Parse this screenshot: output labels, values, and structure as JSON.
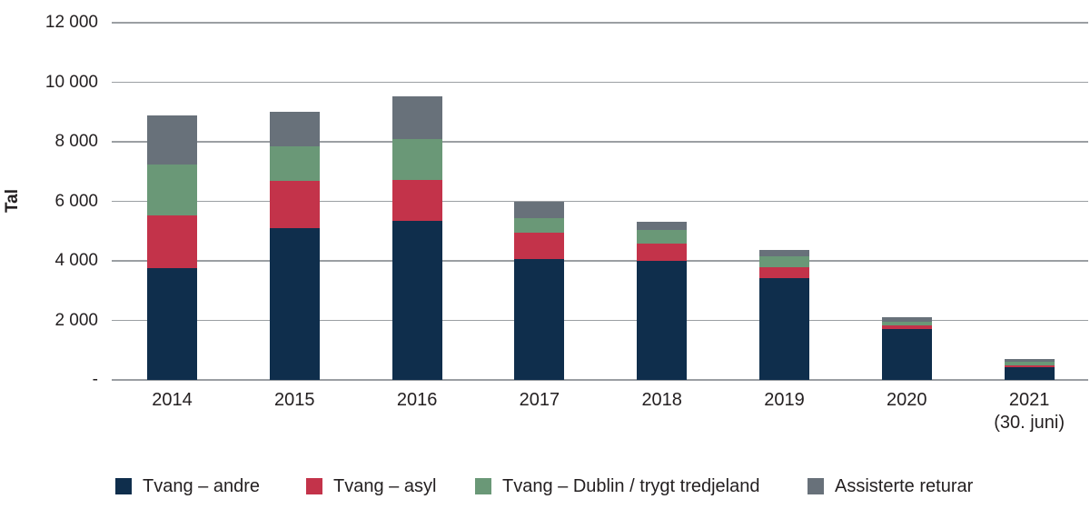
{
  "figure": {
    "ylabel": "Tal",
    "background": "#ffffff",
    "text_color": "#231f20",
    "grid_color": "#9b9fa3"
  },
  "chart_data": {
    "type": "bar",
    "stacked": true,
    "title": "",
    "xlabel": "",
    "ylabel": "Tal",
    "ylim": [
      0,
      12000
    ],
    "grid": true,
    "legend_position": "bottom",
    "yticks": [
      {
        "value": 0,
        "label": "-"
      },
      {
        "value": 2000,
        "label": "2 000"
      },
      {
        "value": 4000,
        "label": "4 000"
      },
      {
        "value": 6000,
        "label": "6 000"
      },
      {
        "value": 8000,
        "label": "8 000"
      },
      {
        "value": 10000,
        "label": "10 000"
      },
      {
        "value": 12000,
        "label": "12 000"
      }
    ],
    "categories": [
      "2014",
      "2015",
      "2016",
      "2017",
      "2018",
      "2019",
      "2020",
      "2021"
    ],
    "category_sublabels": [
      "",
      "",
      "",
      "",
      "",
      "",
      "",
      "(30. juni)"
    ],
    "series": [
      {
        "name": "Tvang – andre",
        "color": "#0f2e4c",
        "values": [
          3770,
          5100,
          5330,
          4050,
          4000,
          3420,
          1710,
          440
        ]
      },
      {
        "name": "Tvang – asyl",
        "color": "#c3334a",
        "values": [
          1760,
          1600,
          1400,
          890,
          570,
          380,
          130,
          60
        ]
      },
      {
        "name": "Tvang – Dublin / trygt tredjeland",
        "color": "#6a9877",
        "values": [
          1720,
          1150,
          1370,
          490,
          460,
          350,
          120,
          105
        ]
      },
      {
        "name": "Assisterte returar",
        "color": "#68717a",
        "values": [
          1650,
          1150,
          1430,
          570,
          270,
          210,
          150,
          100
        ]
      }
    ]
  }
}
